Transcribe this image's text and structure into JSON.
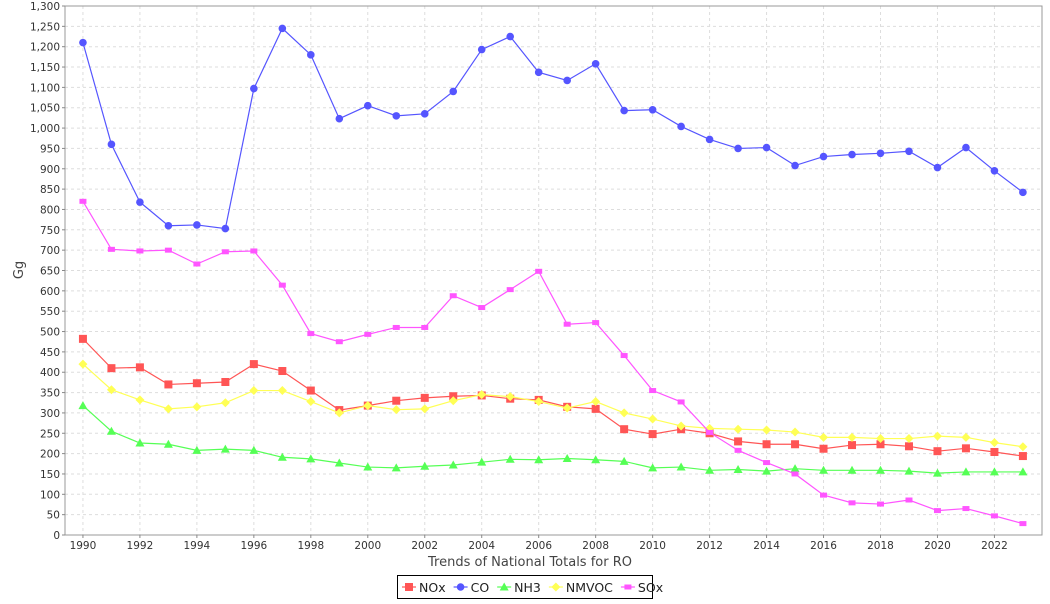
{
  "chart_data": {
    "type": "line",
    "title": "",
    "xlabel": "Trends of National Totals for RO",
    "ylabel": "Gg",
    "xlim": [
      1989.37,
      2023.67
    ],
    "ylim": [
      0,
      1300
    ],
    "y_tick_step": 50,
    "x_tick_step": 2,
    "grid": true,
    "legend_position": "bottom-center",
    "x": [
      1990,
      1991,
      1992,
      1993,
      1994,
      1995,
      1996,
      1997,
      1998,
      1999,
      2000,
      2001,
      2002,
      2003,
      2004,
      2005,
      2006,
      2007,
      2008,
      2009,
      2010,
      2011,
      2012,
      2013,
      2014,
      2015,
      2016,
      2017,
      2018,
      2019,
      2020,
      2021,
      2022,
      2023
    ],
    "series": [
      {
        "name": "NOx",
        "color": "#ff5555",
        "marker": "square",
        "values": [
          482,
          410,
          412,
          370,
          373,
          376,
          420,
          403,
          355,
          307,
          318,
          330,
          337,
          341,
          343,
          335,
          332,
          315,
          310,
          260,
          248,
          260,
          250,
          230,
          223,
          223,
          212,
          221,
          223,
          218,
          206,
          213,
          204,
          194
        ]
      },
      {
        "name": "CO",
        "color": "#5555ff",
        "marker": "circle",
        "values": [
          1210,
          960,
          818,
          760,
          762,
          753,
          1097,
          1245,
          1180,
          1023,
          1055,
          1030,
          1035,
          1090,
          1193,
          1225,
          1137,
          1117,
          1158,
          1043,
          1045,
          1004,
          972,
          950,
          952,
          908,
          930,
          935,
          938,
          943,
          903,
          952,
          895,
          842
        ]
      },
      {
        "name": "NH3",
        "color": "#55ff55",
        "marker": "triangle",
        "values": [
          318,
          255,
          226,
          223,
          208,
          211,
          208,
          191,
          187,
          177,
          167,
          165,
          169,
          172,
          179,
          186,
          185,
          188,
          185,
          181,
          165,
          167,
          159,
          161,
          157,
          163,
          159,
          159,
          159,
          157,
          152,
          155,
          155,
          155
        ]
      },
      {
        "name": "NMVOC",
        "color": "#ffff55",
        "marker": "diamond",
        "values": [
          420,
          357,
          332,
          310,
          315,
          325,
          355,
          355,
          328,
          300,
          318,
          308,
          310,
          330,
          345,
          340,
          328,
          312,
          328,
          300,
          285,
          268,
          262,
          260,
          258,
          253,
          240,
          240,
          237,
          237,
          243,
          240,
          227,
          217
        ]
      },
      {
        "name": "SOx",
        "color": "#ff55ff",
        "marker": "smallsquare",
        "values": [
          820,
          702,
          698,
          700,
          666,
          696,
          698,
          614,
          495,
          475,
          493,
          510,
          510,
          588,
          559,
          603,
          648,
          518,
          522,
          441,
          355,
          327,
          252,
          208,
          178,
          150,
          98,
          79,
          76,
          86,
          60,
          65,
          47,
          28
        ]
      }
    ]
  }
}
